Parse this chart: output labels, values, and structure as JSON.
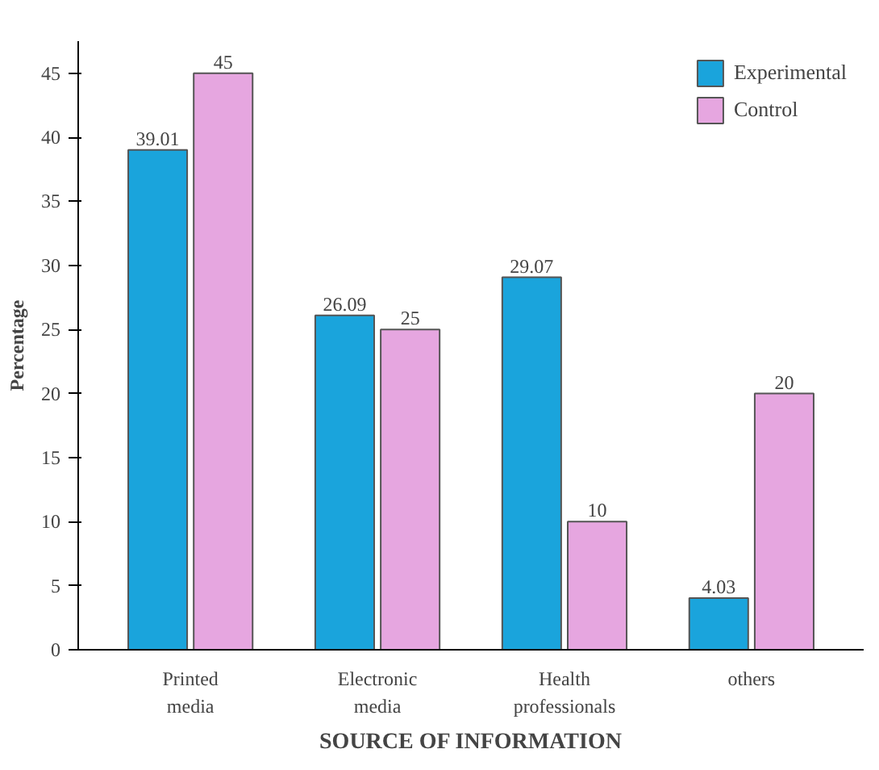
{
  "chart_data": {
    "type": "bar",
    "xlabel": "SOURCE OF INFORMATION",
    "ylabel": "Percentage",
    "categories": [
      "Printed\nmedia",
      "Electronic\nmedia",
      "Health\nprofessionals",
      "others"
    ],
    "series": [
      {
        "name": "Experimental",
        "color": "#1aa4dc",
        "values": [
          39.01,
          26.09,
          29.07,
          4.03
        ]
      },
      {
        "name": "Control",
        "color": "#e6a6e0",
        "values": [
          45,
          25,
          10,
          20
        ]
      }
    ],
    "ylim": [
      0,
      47.5
    ],
    "yticks": [
      0,
      5,
      10,
      15,
      20,
      25,
      30,
      35,
      40,
      45
    ],
    "data_labels": true,
    "legend": "top right",
    "grid": false
  }
}
